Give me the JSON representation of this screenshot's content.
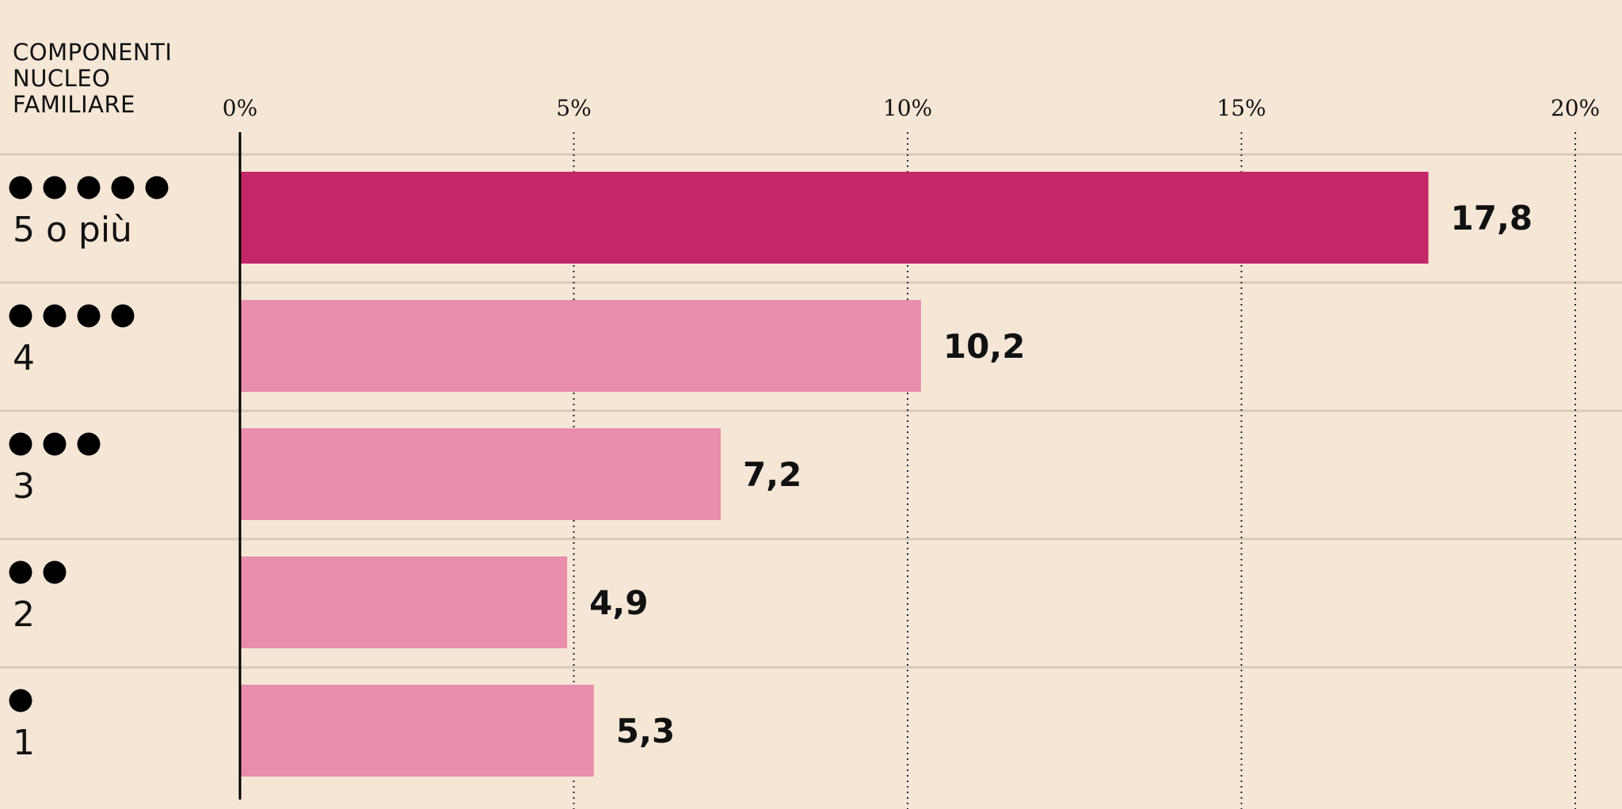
{
  "chart_data": {
    "type": "bar",
    "orientation": "horizontal",
    "title_lines": [
      "COMPONENTI",
      "NUCLEO",
      "FAMILIARE"
    ],
    "categories": [
      "5 o più",
      "4",
      "3",
      "2",
      "1"
    ],
    "dot_counts": [
      5,
      4,
      3,
      2,
      1
    ],
    "values": [
      17.8,
      10.2,
      7.2,
      4.9,
      5.3
    ],
    "value_labels": [
      "17,8",
      "10,2",
      "7,2",
      "4,9",
      "5,3"
    ],
    "xlim": [
      0,
      20
    ],
    "x_ticks": [
      0,
      5,
      10,
      15,
      20
    ],
    "x_tick_labels": [
      "0%",
      "5%",
      "10%",
      "15%",
      "20%"
    ],
    "grid": "vertical dotted",
    "colors": {
      "background": "#f6e6d6",
      "highlight": "#c42767",
      "bar": "#e88dab",
      "separator": "#d8c9b9",
      "text": "#111111"
    }
  }
}
